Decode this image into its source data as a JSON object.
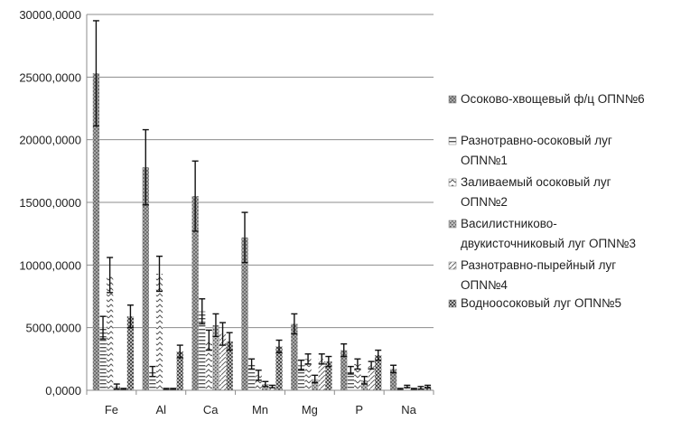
{
  "chart_data": {
    "type": "bar",
    "title": "",
    "xlabel": "",
    "ylabel": "",
    "ylim": [
      0,
      30000
    ],
    "yticks": [
      0,
      5000,
      10000,
      15000,
      20000,
      25000,
      30000
    ],
    "ytick_labels": [
      "0,0000",
      "5000,0000",
      "10000,0000",
      "15000,0000",
      "20000,0000",
      "25000,0000",
      "30000,0000"
    ],
    "grid": true,
    "legend_position": "right",
    "categories": [
      "Fe",
      "Al",
      "Ca",
      "Mn",
      "Mg",
      "P",
      "Na"
    ],
    "series": [
      {
        "name": "Осоково-хвощевый  ф/ц ОПN№6",
        "legend_lines": [
          "Осоково-хвощевый  ф/ц ОПN№6"
        ],
        "pattern": "dense",
        "values": [
          25300,
          17800,
          15500,
          12200,
          5300,
          3200,
          1700
        ],
        "errors": [
          4200,
          3000,
          2800,
          2000,
          800,
          500,
          300
        ]
      },
      {
        "name": "Разнотравно-осоковый луг ОПN№1",
        "legend_lines": [
          "Разнотравно-осоковый  луг",
          "ОПN№1"
        ],
        "pattern": "hlines",
        "values": [
          5000,
          1500,
          6300,
          2100,
          2000,
          1600,
          100
        ],
        "errors": [
          900,
          400,
          1000,
          400,
          400,
          300,
          50
        ]
      },
      {
        "name": "Заливаемый осоковый луг ОПN№2",
        "legend_lines": [
          "Заливаемый  осоковый  луг",
          "ОПN№2"
        ],
        "pattern": "wave",
        "values": [
          9200,
          9300,
          4000,
          1200,
          2500,
          2100,
          300
        ],
        "errors": [
          1400,
          1400,
          800,
          400,
          400,
          400,
          100
        ]
      },
      {
        "name": "Василистниково-двукисточниковый луг ОПN№3",
        "legend_lines": [
          "Василистниково-",
          "двукисточниковый  луг ОПN№3"
        ],
        "pattern": "dots",
        "values": [
          300,
          100,
          5200,
          500,
          900,
          800,
          100
        ],
        "errors": [
          200,
          50,
          900,
          200,
          300,
          300,
          50
        ]
      },
      {
        "name": "Разнотравно-пырейный луг ОПN№4",
        "legend_lines": [
          "Разнотравно-пырейный  луг",
          "ОПN№4"
        ],
        "pattern": "diag",
        "values": [
          100,
          100,
          4500,
          300,
          2500,
          2000,
          200
        ],
        "errors": [
          50,
          50,
          900,
          100,
          400,
          300,
          100
        ]
      },
      {
        "name": "Водноосоковый луг ОПN№5",
        "legend_lines": [
          "Водноосоковый  луг ОПN№5"
        ],
        "pattern": "checker",
        "values": [
          5900,
          3100,
          3900,
          3500,
          2300,
          2800,
          300
        ],
        "errors": [
          900,
          500,
          700,
          500,
          400,
          400,
          100
        ]
      }
    ]
  }
}
